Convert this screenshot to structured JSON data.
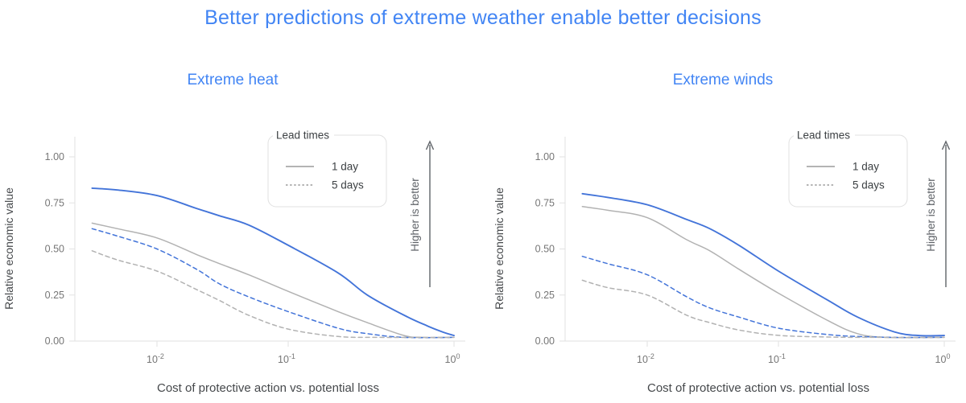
{
  "page": {
    "title": "Better predictions of extreme weather enable better decisions",
    "background": "#ffffff"
  },
  "colors": {
    "title_blue": "#4285f4",
    "subtitle_blue": "#4285f4",
    "line_blue": "#4374d9",
    "line_gray": "#b2b2b2",
    "axis_line": "#e2e2e2",
    "tick_label": "#767676",
    "axis_title": "#45484b",
    "legend_border": "#e0e0e0",
    "legend_text": "#3c4043",
    "legend_sample": "#9c9c9c",
    "arrow": "#5f6368"
  },
  "legend": {
    "title": "Lead times",
    "items": [
      {
        "label": "1 day",
        "line_style": "solid"
      },
      {
        "label": "5 days",
        "line_style": "dashed"
      }
    ]
  },
  "arrow_annotation": {
    "label": "Higher is better",
    "direction": "up"
  },
  "axes": {
    "x_label": "Cost of protective action vs. potential loss",
    "y_label": "Relative economic value",
    "y_ticks": [
      {
        "label": "1.00",
        "value": 1.0
      },
      {
        "label": "0.75",
        "value": 0.75
      },
      {
        "label": "0.50",
        "value": 0.5
      },
      {
        "label": "0.25",
        "value": 0.25
      },
      {
        "label": "0.00",
        "value": 0.0
      }
    ],
    "x_ticks": [
      {
        "mantissa": "10",
        "exponent": "-2",
        "value": 0.01
      },
      {
        "mantissa": "10",
        "exponent": "-1",
        "value": 0.1
      },
      {
        "mantissa": "10",
        "exponent": "0",
        "value": 1.0
      }
    ]
  },
  "chart_data": [
    {
      "type": "line",
      "title": "Extreme heat",
      "xlabel": "Cost of protective action vs. potential loss",
      "ylabel": "Relative economic value",
      "xscale": "log",
      "xlim": [
        0.0024,
        1.05
      ],
      "ylim": [
        0,
        1.0
      ],
      "grid": false,
      "legend_position": "top-right-inside",
      "series": [
        {
          "name": "1 day (blue)",
          "lead_time": "1 day",
          "color": "blue",
          "style": "solid",
          "points": [
            [
              0.0032,
              0.83
            ],
            [
              0.005,
              0.82
            ],
            [
              0.01,
              0.79
            ],
            [
              0.02,
              0.72
            ],
            [
              0.03,
              0.68
            ],
            [
              0.05,
              0.63
            ],
            [
              0.1,
              0.52
            ],
            [
              0.2,
              0.37
            ],
            [
              0.3,
              0.25
            ],
            [
              0.5,
              0.14
            ],
            [
              0.7,
              0.08
            ],
            [
              0.85,
              0.05
            ],
            [
              1.0,
              0.03
            ]
          ]
        },
        {
          "name": "1 day (gray)",
          "lead_time": "1 day",
          "color": "gray",
          "style": "solid",
          "points": [
            [
              0.0032,
              0.64
            ],
            [
              0.005,
              0.61
            ],
            [
              0.01,
              0.56
            ],
            [
              0.02,
              0.47
            ],
            [
              0.03,
              0.42
            ],
            [
              0.05,
              0.36
            ],
            [
              0.1,
              0.27
            ],
            [
              0.2,
              0.16
            ],
            [
              0.3,
              0.1
            ],
            [
              0.5,
              0.03
            ],
            [
              0.65,
              0.02
            ],
            [
              1.0,
              0.02
            ]
          ]
        },
        {
          "name": "5 days (blue)",
          "lead_time": "5 days",
          "color": "blue",
          "style": "dashed",
          "points": [
            [
              0.0032,
              0.61
            ],
            [
              0.005,
              0.57
            ],
            [
              0.01,
              0.5
            ],
            [
              0.02,
              0.39
            ],
            [
              0.03,
              0.31
            ],
            [
              0.05,
              0.24
            ],
            [
              0.1,
              0.16
            ],
            [
              0.2,
              0.07
            ],
            [
              0.3,
              0.04
            ],
            [
              0.5,
              0.02
            ],
            [
              1.0,
              0.02
            ]
          ]
        },
        {
          "name": "5 days (gray)",
          "lead_time": "5 days",
          "color": "gray",
          "style": "dashed",
          "points": [
            [
              0.0032,
              0.49
            ],
            [
              0.005,
              0.44
            ],
            [
              0.01,
              0.38
            ],
            [
              0.02,
              0.28
            ],
            [
              0.03,
              0.22
            ],
            [
              0.05,
              0.14
            ],
            [
              0.1,
              0.065
            ],
            [
              0.2,
              0.025
            ],
            [
              0.35,
              0.02
            ],
            [
              1.0,
              0.02
            ]
          ]
        }
      ]
    },
    {
      "type": "line",
      "title": "Extreme winds",
      "xlabel": "Cost of protective action vs. potential loss",
      "ylabel": "Relative economic value",
      "xscale": "log",
      "xlim": [
        0.0024,
        1.05
      ],
      "ylim": [
        0,
        1.0
      ],
      "grid": false,
      "legend_position": "top-right-inside",
      "series": [
        {
          "name": "1 day (blue)",
          "lead_time": "1 day",
          "color": "blue",
          "style": "solid",
          "points": [
            [
              0.0032,
              0.8
            ],
            [
              0.005,
              0.78
            ],
            [
              0.01,
              0.74
            ],
            [
              0.02,
              0.66
            ],
            [
              0.03,
              0.61
            ],
            [
              0.05,
              0.52
            ],
            [
              0.1,
              0.38
            ],
            [
              0.2,
              0.22
            ],
            [
              0.3,
              0.13
            ],
            [
              0.5,
              0.05
            ],
            [
              0.7,
              0.03
            ],
            [
              1.0,
              0.03
            ]
          ]
        },
        {
          "name": "1 day (gray)",
          "lead_time": "1 day",
          "color": "gray",
          "style": "solid",
          "points": [
            [
              0.0032,
              0.73
            ],
            [
              0.005,
              0.71
            ],
            [
              0.01,
              0.67
            ],
            [
              0.02,
              0.55
            ],
            [
              0.03,
              0.49
            ],
            [
              0.05,
              0.39
            ],
            [
              0.1,
              0.26
            ],
            [
              0.2,
              0.11
            ],
            [
              0.3,
              0.04
            ],
            [
              0.45,
              0.02
            ],
            [
              1.0,
              0.02
            ]
          ]
        },
        {
          "name": "5 days (blue)",
          "lead_time": "5 days",
          "color": "blue",
          "style": "dashed",
          "points": [
            [
              0.0032,
              0.46
            ],
            [
              0.005,
              0.42
            ],
            [
              0.01,
              0.36
            ],
            [
              0.02,
              0.24
            ],
            [
              0.03,
              0.18
            ],
            [
              0.05,
              0.13
            ],
            [
              0.1,
              0.07
            ],
            [
              0.2,
              0.035
            ],
            [
              0.3,
              0.025
            ],
            [
              0.5,
              0.02
            ],
            [
              1.0,
              0.02
            ]
          ]
        },
        {
          "name": "5 days (gray)",
          "lead_time": "5 days",
          "color": "gray",
          "style": "dashed",
          "points": [
            [
              0.0032,
              0.33
            ],
            [
              0.005,
              0.29
            ],
            [
              0.01,
              0.25
            ],
            [
              0.02,
              0.14
            ],
            [
              0.03,
              0.1
            ],
            [
              0.05,
              0.06
            ],
            [
              0.1,
              0.031
            ],
            [
              0.2,
              0.022
            ],
            [
              0.35,
              0.02
            ],
            [
              1.0,
              0.02
            ]
          ]
        }
      ]
    }
  ]
}
